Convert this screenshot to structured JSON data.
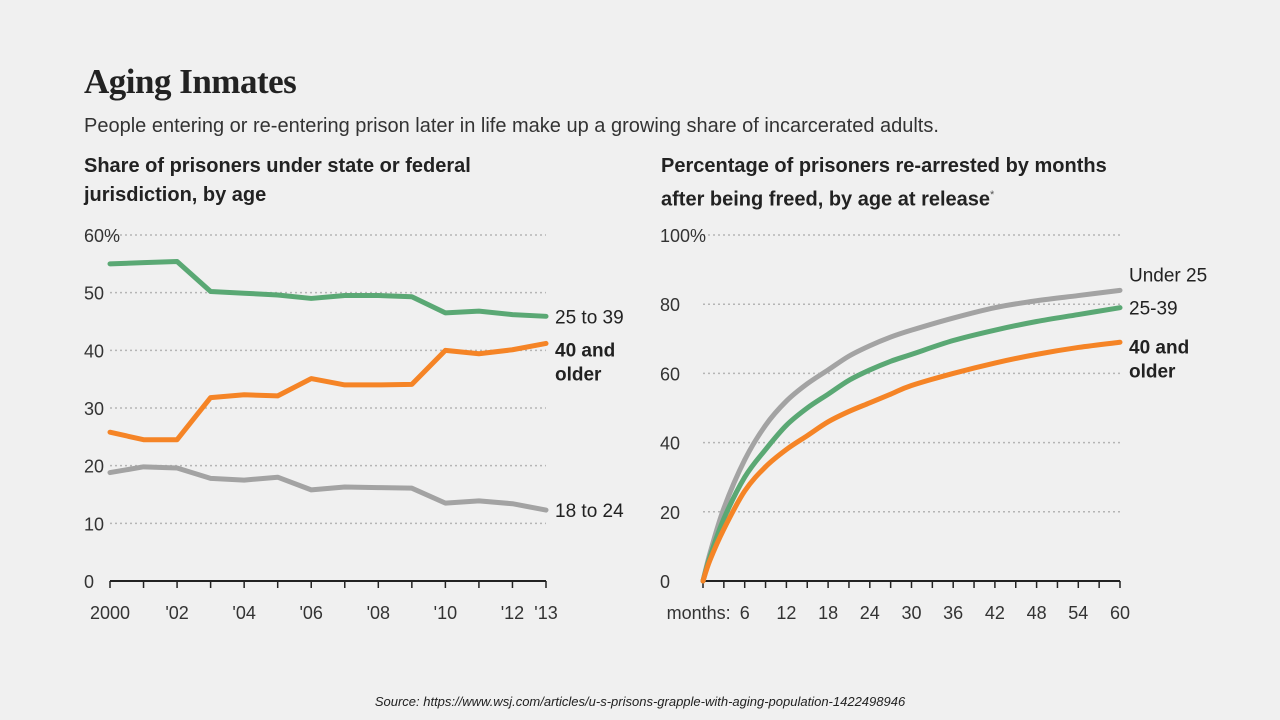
{
  "title": "Aging Inmates",
  "subtitle": "People entering or re-entering prison later in life make up a growing share of incarcerated adults.",
  "source": "Source: https://www.wsj.com/articles/u-s-prisons-grapple-with-aging-population-1422498946",
  "colors": {
    "green": "#5aa874",
    "orange": "#f58426",
    "gray": "#a3a3a3",
    "axis": "#222222",
    "grid": "#b5b5b5"
  },
  "chart_data": [
    {
      "type": "line",
      "title": "Share of prisoners under state or federal jurisdiction, by age",
      "title_lines": [
        "Share of prisoners under state or federal",
        "jurisdiction, by age"
      ],
      "xlim": [
        2000,
        2013
      ],
      "ylim": [
        0,
        60
      ],
      "grid": true,
      "x_tick_values": [
        2000,
        2002,
        2004,
        2006,
        2008,
        2010,
        2012,
        2013
      ],
      "x_tick_labels": [
        "2000",
        "'02",
        "'04",
        "'06",
        "'08",
        "'10",
        "'12",
        "'13"
      ],
      "y_ticks": [
        0,
        10,
        20,
        30,
        40,
        50,
        60
      ],
      "y_tick_labels": [
        "0",
        "10",
        "20",
        "30",
        "40",
        "50",
        "60%"
      ],
      "x": [
        2000,
        2001,
        2002,
        2003,
        2004,
        2005,
        2006,
        2007,
        2008,
        2009,
        2010,
        2011,
        2012,
        2013
      ],
      "series": [
        {
          "name": "25 to 39",
          "label_lines": [
            "25 to 39"
          ],
          "bold": false,
          "color": "#5aa874",
          "values": [
            55,
            55.2,
            55.4,
            50.2,
            49.9,
            49.6,
            49.0,
            49.5,
            49.5,
            49.3,
            46.5,
            46.8,
            46.2,
            45.9
          ]
        },
        {
          "name": "40 and older",
          "label_lines": [
            "40 and",
            "older"
          ],
          "bold": true,
          "color": "#f58426",
          "values": [
            25.8,
            24.5,
            24.5,
            31.8,
            32.3,
            32.1,
            35.1,
            34.0,
            34.0,
            34.1,
            40.0,
            39.4,
            40.1,
            41.2
          ]
        },
        {
          "name": "18 to 24",
          "label_lines": [
            "18 to 24"
          ],
          "bold": false,
          "color": "#a3a3a3",
          "values": [
            18.8,
            19.8,
            19.6,
            17.8,
            17.5,
            18.0,
            15.8,
            16.3,
            16.2,
            16.1,
            13.5,
            13.9,
            13.4,
            12.3
          ]
        }
      ]
    },
    {
      "type": "line",
      "title": "Percentage of prisoners re-arrested by months after being freed, by age at release*",
      "title_lines": [
        "Percentage of prisoners re-arrested by months",
        "after being freed, by age at release"
      ],
      "title_mark": "*",
      "xlim": [
        0,
        60
      ],
      "ylim": [
        0,
        100
      ],
      "grid": true,
      "x_prefix": "months:",
      "x_tick_values": [
        6,
        12,
        18,
        24,
        30,
        36,
        42,
        48,
        54,
        60
      ],
      "x_tick_labels": [
        "6",
        "12",
        "18",
        "24",
        "30",
        "36",
        "42",
        "48",
        "54",
        "60"
      ],
      "y_ticks": [
        0,
        20,
        40,
        60,
        80,
        100
      ],
      "y_tick_labels": [
        "0",
        "20",
        "40",
        "60",
        "80",
        "100%"
      ],
      "x": [
        0,
        1,
        3,
        6,
        9,
        12,
        15,
        18,
        21,
        24,
        27,
        30,
        36,
        42,
        48,
        54,
        60
      ],
      "series": [
        {
          "name": "Under 25",
          "label_lines": [
            "Under 25"
          ],
          "bold": false,
          "color": "#a3a3a3",
          "values": [
            0,
            8,
            21,
            35,
            45,
            52,
            57,
            61,
            65,
            68,
            70.5,
            72.5,
            76,
            79,
            81,
            82.5,
            84
          ]
        },
        {
          "name": "25-39",
          "label_lines": [
            "25-39"
          ],
          "bold": false,
          "color": "#5aa874",
          "values": [
            0,
            7,
            18,
            30,
            38,
            45,
            50,
            54,
            58,
            61,
            63.5,
            65.5,
            69.5,
            72.5,
            75,
            77,
            79
          ]
        },
        {
          "name": "40 and older",
          "label_lines": [
            "40 and",
            "older"
          ],
          "bold": true,
          "color": "#f58426",
          "values": [
            0,
            6,
            15,
            26,
            33,
            38,
            42,
            46,
            49,
            51.5,
            54,
            56.5,
            60,
            63,
            65.5,
            67.5,
            69
          ]
        }
      ]
    }
  ]
}
